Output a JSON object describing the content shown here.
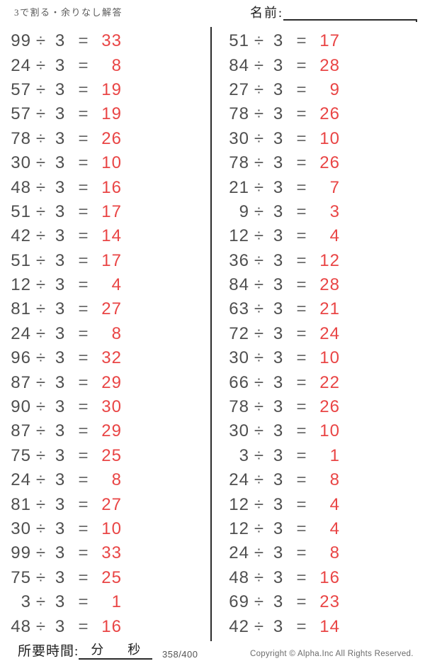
{
  "header": {
    "title": "3で割る・余りなし解答",
    "name_label": "名前:"
  },
  "operator": "÷",
  "divisor": "3",
  "equals": "=",
  "columns": {
    "left": [
      {
        "dividend": "99",
        "answer": "33"
      },
      {
        "dividend": "24",
        "answer": "8"
      },
      {
        "dividend": "57",
        "answer": "19"
      },
      {
        "dividend": "57",
        "answer": "19"
      },
      {
        "dividend": "78",
        "answer": "26"
      },
      {
        "dividend": "30",
        "answer": "10"
      },
      {
        "dividend": "48",
        "answer": "16"
      },
      {
        "dividend": "51",
        "answer": "17"
      },
      {
        "dividend": "42",
        "answer": "14"
      },
      {
        "dividend": "51",
        "answer": "17"
      },
      {
        "dividend": "12",
        "answer": "4"
      },
      {
        "dividend": "81",
        "answer": "27"
      },
      {
        "dividend": "24",
        "answer": "8"
      },
      {
        "dividend": "96",
        "answer": "32"
      },
      {
        "dividend": "87",
        "answer": "29"
      },
      {
        "dividend": "90",
        "answer": "30"
      },
      {
        "dividend": "87",
        "answer": "29"
      },
      {
        "dividend": "75",
        "answer": "25"
      },
      {
        "dividend": "24",
        "answer": "8"
      },
      {
        "dividend": "81",
        "answer": "27"
      },
      {
        "dividend": "30",
        "answer": "10"
      },
      {
        "dividend": "99",
        "answer": "33"
      },
      {
        "dividend": "75",
        "answer": "25"
      },
      {
        "dividend": "3",
        "answer": "1"
      },
      {
        "dividend": "48",
        "answer": "16"
      }
    ],
    "right": [
      {
        "dividend": "51",
        "answer": "17"
      },
      {
        "dividend": "84",
        "answer": "28"
      },
      {
        "dividend": "27",
        "answer": "9"
      },
      {
        "dividend": "78",
        "answer": "26"
      },
      {
        "dividend": "30",
        "answer": "10"
      },
      {
        "dividend": "78",
        "answer": "26"
      },
      {
        "dividend": "21",
        "answer": "7"
      },
      {
        "dividend": "9",
        "answer": "3"
      },
      {
        "dividend": "12",
        "answer": "4"
      },
      {
        "dividend": "36",
        "answer": "12"
      },
      {
        "dividend": "84",
        "answer": "28"
      },
      {
        "dividend": "63",
        "answer": "21"
      },
      {
        "dividend": "72",
        "answer": "24"
      },
      {
        "dividend": "30",
        "answer": "10"
      },
      {
        "dividend": "66",
        "answer": "22"
      },
      {
        "dividend": "78",
        "answer": "26"
      },
      {
        "dividend": "30",
        "answer": "10"
      },
      {
        "dividend": "3",
        "answer": "1"
      },
      {
        "dividend": "24",
        "answer": "8"
      },
      {
        "dividend": "12",
        "answer": "4"
      },
      {
        "dividend": "12",
        "answer": "4"
      },
      {
        "dividend": "24",
        "answer": "8"
      },
      {
        "dividend": "48",
        "answer": "16"
      },
      {
        "dividend": "69",
        "answer": "23"
      },
      {
        "dividend": "42",
        "answer": "14"
      }
    ]
  },
  "footer": {
    "time_label": "所要時間:",
    "minutes_label": "分",
    "seconds_label": "秒",
    "page_indicator": "358/400",
    "copyright": "Copyright ©  Alpha.Inc All Rights Reserved."
  },
  "colors": {
    "answer_red": "#e94545",
    "problem_gray": "#4f4f4f",
    "line_dark": "#2b2b2b"
  }
}
